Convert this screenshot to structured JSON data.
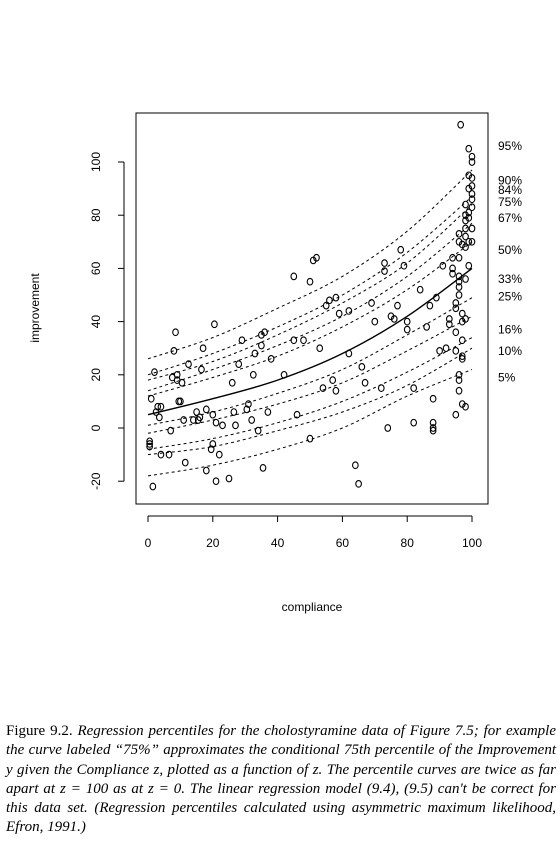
{
  "chart_data": {
    "type": "scatter",
    "xlabel": "compliance",
    "ylabel": "improvement",
    "xlim": [
      -4,
      104
    ],
    "ylim": [
      -28,
      120
    ],
    "xticks": [
      0,
      20,
      40,
      60,
      80,
      100
    ],
    "xtick_labels": [
      "0",
      "20",
      "40",
      "60",
      "80",
      "100"
    ],
    "yticks": [
      -20,
      0,
      20,
      40,
      60,
      80,
      100
    ],
    "ytick_labels": [
      "-20",
      "0",
      "20",
      "40",
      "60",
      "80",
      "100"
    ],
    "grid": false,
    "points": [
      [
        0.5,
        -6
      ],
      [
        0.5,
        -5
      ],
      [
        0.5,
        -7
      ],
      [
        1,
        11
      ],
      [
        1.5,
        -22
      ],
      [
        2,
        21
      ],
      [
        2.5,
        6
      ],
      [
        3,
        8
      ],
      [
        3.5,
        4
      ],
      [
        4,
        8
      ],
      [
        4,
        -10
      ],
      [
        6.5,
        -10
      ],
      [
        7,
        -1
      ],
      [
        7.5,
        19
      ],
      [
        8,
        29
      ],
      [
        8.5,
        36
      ],
      [
        9,
        18
      ],
      [
        9,
        20
      ],
      [
        9.5,
        10
      ],
      [
        10,
        10
      ],
      [
        10.5,
        17
      ],
      [
        11,
        3
      ],
      [
        11.5,
        -13
      ],
      [
        12.5,
        24
      ],
      [
        14,
        3
      ],
      [
        15,
        6
      ],
      [
        15.5,
        3
      ],
      [
        16,
        4
      ],
      [
        16.5,
        22
      ],
      [
        17,
        30
      ],
      [
        18,
        7
      ],
      [
        18,
        -16
      ],
      [
        19.5,
        -8
      ],
      [
        20,
        -6
      ],
      [
        20,
        5
      ],
      [
        20.5,
        39
      ],
      [
        21,
        2
      ],
      [
        21,
        -20
      ],
      [
        22,
        -10
      ],
      [
        23,
        1
      ],
      [
        25,
        -19
      ],
      [
        26,
        17
      ],
      [
        26.5,
        6
      ],
      [
        27,
        1
      ],
      [
        28,
        24
      ],
      [
        29,
        33
      ],
      [
        30.5,
        7
      ],
      [
        31,
        9
      ],
      [
        32,
        3
      ],
      [
        32.5,
        20
      ],
      [
        33,
        28
      ],
      [
        34,
        -1
      ],
      [
        35,
        31
      ],
      [
        35,
        35
      ],
      [
        35.5,
        -15
      ],
      [
        36,
        36
      ],
      [
        37,
        6
      ],
      [
        38,
        26
      ],
      [
        42,
        20
      ],
      [
        45,
        33
      ],
      [
        46,
        5
      ],
      [
        45,
        57
      ],
      [
        48,
        33
      ],
      [
        50,
        -4
      ],
      [
        50,
        55
      ],
      [
        51,
        63
      ],
      [
        52,
        64
      ],
      [
        53,
        30
      ],
      [
        54,
        15
      ],
      [
        55,
        46
      ],
      [
        56,
        48
      ],
      [
        57,
        18
      ],
      [
        58,
        49
      ],
      [
        58,
        14
      ],
      [
        59,
        43
      ],
      [
        62,
        28
      ],
      [
        62,
        44
      ],
      [
        64,
        -14
      ],
      [
        65,
        -21
      ],
      [
        66,
        23
      ],
      [
        67,
        17
      ],
      [
        69,
        47
      ],
      [
        70,
        40
      ],
      [
        72,
        15
      ],
      [
        73,
        59
      ],
      [
        73,
        62
      ],
      [
        74,
        0
      ],
      [
        75,
        42
      ],
      [
        76,
        41
      ],
      [
        77,
        46
      ],
      [
        78,
        67
      ],
      [
        79,
        61
      ],
      [
        80,
        37
      ],
      [
        80,
        40
      ],
      [
        82,
        15
      ],
      [
        82,
        2
      ],
      [
        84,
        52
      ],
      [
        86,
        38
      ],
      [
        87,
        46
      ],
      [
        88,
        2
      ],
      [
        88,
        0
      ],
      [
        88,
        -1
      ],
      [
        88,
        11
      ],
      [
        89,
        49
      ],
      [
        90,
        29
      ],
      [
        91,
        61
      ],
      [
        92,
        30
      ],
      [
        93,
        41
      ],
      [
        93,
        39
      ],
      [
        94,
        60
      ],
      [
        94,
        64
      ],
      [
        94,
        58
      ],
      [
        95,
        45
      ],
      [
        95,
        36
      ],
      [
        95,
        29
      ],
      [
        95,
        5
      ],
      [
        95,
        47
      ],
      [
        96,
        57
      ],
      [
        96,
        73
      ],
      [
        96,
        70
      ],
      [
        96,
        64
      ],
      [
        96,
        55
      ],
      [
        96,
        53
      ],
      [
        96,
        50
      ],
      [
        96,
        18
      ],
      [
        96,
        20
      ],
      [
        96,
        14
      ],
      [
        96.5,
        114
      ],
      [
        97,
        69
      ],
      [
        97,
        43
      ],
      [
        97,
        40
      ],
      [
        97,
        9
      ],
      [
        97,
        27
      ],
      [
        97,
        26
      ],
      [
        97,
        33
      ],
      [
        98,
        80
      ],
      [
        98,
        84
      ],
      [
        98,
        78
      ],
      [
        98,
        75
      ],
      [
        98,
        72
      ],
      [
        98,
        68
      ],
      [
        98,
        56
      ],
      [
        98,
        41
      ],
      [
        98,
        8
      ],
      [
        99,
        105
      ],
      [
        99,
        95
      ],
      [
        99,
        90
      ],
      [
        99,
        81
      ],
      [
        99,
        79
      ],
      [
        99,
        70
      ],
      [
        99,
        61
      ],
      [
        100,
        102
      ],
      [
        100,
        100
      ],
      [
        100,
        94
      ],
      [
        100,
        91
      ],
      [
        100,
        88
      ],
      [
        100,
        86
      ],
      [
        100,
        83
      ],
      [
        100,
        75
      ],
      [
        100,
        70
      ]
    ],
    "percentile_curves": [
      {
        "label": "95%",
        "values_at_x": [
          [
            0,
            26
          ],
          [
            20,
            34
          ],
          [
            40,
            45
          ],
          [
            60,
            57
          ],
          [
            80,
            74
          ],
          [
            100,
            97
          ]
        ]
      },
      {
        "label": "90%",
        "values_at_x": [
          [
            0,
            20
          ],
          [
            20,
            28
          ],
          [
            40,
            38
          ],
          [
            60,
            50
          ],
          [
            80,
            66
          ],
          [
            100,
            87
          ]
        ]
      },
      {
        "label": "84%",
        "values_at_x": [
          [
            0,
            18
          ],
          [
            20,
            25
          ],
          [
            40,
            35
          ],
          [
            60,
            47
          ],
          [
            80,
            62
          ],
          [
            100,
            84
          ]
        ]
      },
      {
        "label": "75%",
        "values_at_x": [
          [
            0,
            14
          ],
          [
            20,
            22
          ],
          [
            40,
            31
          ],
          [
            60,
            42
          ],
          [
            80,
            57
          ],
          [
            100,
            77
          ]
        ]
      },
      {
        "label": "67%",
        "values_at_x": [
          [
            0,
            12
          ],
          [
            20,
            19
          ],
          [
            40,
            27
          ],
          [
            60,
            38
          ],
          [
            80,
            52
          ],
          [
            100,
            70
          ]
        ]
      },
      {
        "label": "50%",
        "values_at_x": [
          [
            0,
            5
          ],
          [
            20,
            11
          ],
          [
            40,
            18
          ],
          [
            60,
            28
          ],
          [
            80,
            42
          ],
          [
            100,
            60
          ]
        ]
      },
      {
        "label": "33%",
        "values_at_x": [
          [
            0,
            1
          ],
          [
            20,
            6
          ],
          [
            40,
            13
          ],
          [
            60,
            22
          ],
          [
            80,
            35
          ],
          [
            100,
            49
          ]
        ]
      },
      {
        "label": "25%",
        "values_at_x": [
          [
            0,
            -2
          ],
          [
            20,
            3
          ],
          [
            40,
            9
          ],
          [
            60,
            17
          ],
          [
            80,
            29
          ],
          [
            100,
            42
          ]
        ]
      },
      {
        "label": "16%",
        "values_at_x": [
          [
            0,
            -8
          ],
          [
            20,
            -4
          ],
          [
            40,
            2
          ],
          [
            60,
            10
          ],
          [
            80,
            21
          ],
          [
            100,
            34
          ]
        ]
      },
      {
        "label": "10%",
        "values_at_x": [
          [
            0,
            -10
          ],
          [
            20,
            -7
          ],
          [
            40,
            -1
          ],
          [
            60,
            6
          ],
          [
            80,
            16
          ],
          [
            100,
            30
          ]
        ]
      },
      {
        "label": "5%",
        "values_at_x": [
          [
            0,
            -18
          ],
          [
            20,
            -14
          ],
          [
            40,
            -8
          ],
          [
            60,
            0
          ],
          [
            80,
            12
          ],
          [
            100,
            22
          ]
        ]
      }
    ],
    "percentile_labels": [
      {
        "text": "95%",
        "y": 106
      },
      {
        "text": "90%",
        "y": 93
      },
      {
        "text": "84%",
        "y": 89.5
      },
      {
        "text": "75%",
        "y": 85
      },
      {
        "text": "67%",
        "y": 79
      },
      {
        "text": "50%",
        "y": 67
      },
      {
        "text": "33%",
        "y": 56
      },
      {
        "text": "25%",
        "y": 49.5
      },
      {
        "text": "16%",
        "y": 37
      },
      {
        "text": "10%",
        "y": 29
      },
      {
        "text": "5%",
        "y": 19
      }
    ]
  },
  "caption": {
    "number": "Figure 9.2.",
    "text": "Regression percentiles for the cholostyramine data of Figure 7.5; for example the curve labeled “75%” approximates the conditional 75th percentile of the Improvement y given the Compliance z, plotted as a function of z. The percentile curves are twice as far apart at z = 100 as at z = 0. The linear regression model (9.4), (9.5) can't be correct for this data set. (Regression percentiles calculated using asymmetric maximum likelihood, Efron, 1991.)"
  }
}
